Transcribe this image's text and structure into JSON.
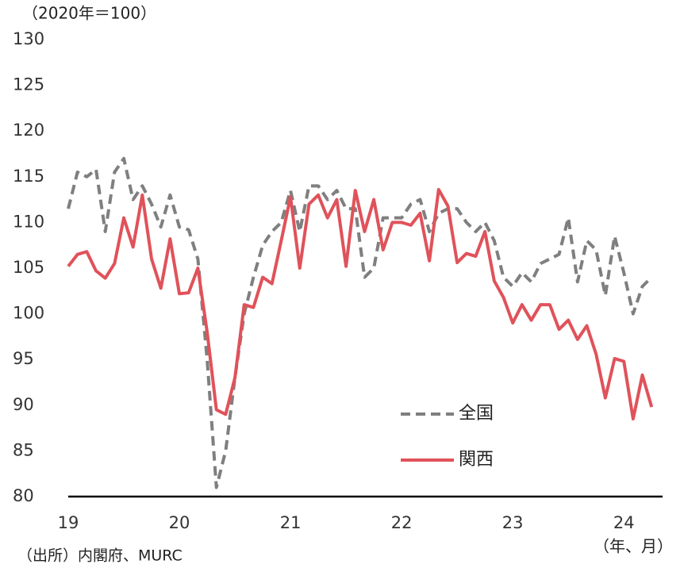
{
  "chart_data": {
    "type": "line",
    "y_label": "（2020年＝100）",
    "x_label": "（年、月）",
    "source": "（出所）内閣府、MURC",
    "categories": [
      "19",
      null,
      null,
      null,
      null,
      null,
      null,
      null,
      null,
      null,
      null,
      null,
      "20",
      null,
      null,
      null,
      null,
      null,
      null,
      null,
      null,
      null,
      null,
      null,
      "21",
      null,
      null,
      null,
      null,
      null,
      null,
      null,
      null,
      null,
      null,
      null,
      "22",
      null,
      null,
      null,
      null,
      null,
      null,
      null,
      null,
      null,
      null,
      null,
      "23",
      null,
      null,
      null,
      null,
      null,
      null,
      null,
      null,
      null,
      null,
      null,
      "24",
      null,
      null,
      null
    ],
    "series": [
      {
        "name": "全国",
        "color": "#7f7f7f",
        "dash": true,
        "values": [
          111.5,
          115.5,
          115,
          115.8,
          109,
          115.5,
          117,
          112.5,
          114,
          112,
          109.5,
          113,
          109.5,
          109.2,
          106,
          95,
          81,
          85,
          93,
          100,
          104,
          107.5,
          109,
          110,
          113.5,
          109,
          114,
          114,
          112.5,
          113.5,
          111.5,
          111.5,
          104,
          105,
          110.5,
          110.5,
          110.5,
          112,
          112.5,
          109,
          111,
          111.5,
          111.5,
          110,
          109,
          110,
          108,
          104,
          103,
          104.5,
          103.5,
          105.5,
          106,
          106.5,
          110.5,
          103.5,
          108,
          107,
          102,
          108.5,
          104.5,
          100,
          103,
          104
        ]
      },
      {
        "name": "関西",
        "color": "#e0525a",
        "dash": false,
        "values": [
          105.2,
          106.5,
          106.8,
          104.7,
          103.9,
          105.5,
          110.5,
          107.3,
          113,
          106,
          102.8,
          108.2,
          102.2,
          102.3,
          105,
          98,
          89.5,
          89,
          93,
          101,
          100.7,
          104,
          103.3,
          108,
          112.8,
          105,
          112,
          113,
          110.5,
          112.5,
          105.2,
          113.5,
          109,
          112.5,
          107,
          110,
          110,
          109.7,
          111,
          105.8,
          113.6,
          111.8,
          105.6,
          106.6,
          106.3,
          109,
          103.6,
          101.8,
          99,
          101,
          99.3,
          101,
          101,
          98.3,
          99.3,
          97.2,
          98.7,
          95.6,
          90.8,
          95.1,
          94.8,
          88.5,
          93.3,
          89.8
        ]
      }
    ],
    "ylim": [
      80,
      130
    ],
    "yticks": [
      80,
      85,
      90,
      95,
      100,
      105,
      110,
      115,
      120,
      125,
      130
    ],
    "grid": false
  }
}
